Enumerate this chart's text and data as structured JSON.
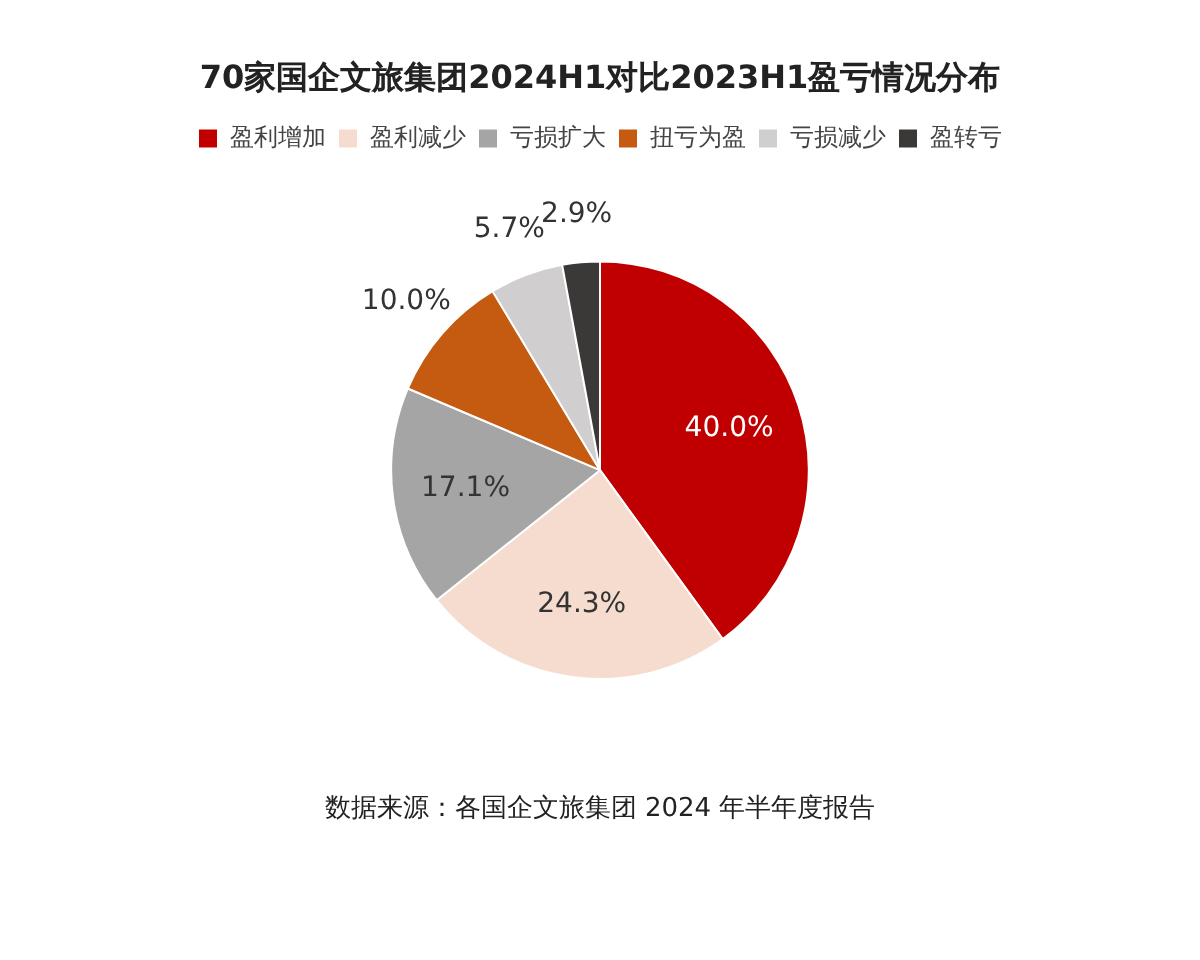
{
  "chart_data": {
    "type": "pie",
    "title": "70家国企文旅集团2024H1对比2023H1盈亏情况分布",
    "categories": [
      "盈利增加",
      "盈利减少",
      "亏损扩大",
      "扭亏为盈",
      "亏损减少",
      "盈转亏"
    ],
    "values": [
      40.0,
      24.3,
      17.1,
      10.0,
      5.7,
      2.9
    ],
    "colors": [
      "#c00000",
      "#f5dccf",
      "#a5a5a5",
      "#c55a11",
      "#d0cece",
      "#3b3838"
    ],
    "value_labels": [
      "40.0%",
      "24.3%",
      "17.1%",
      "10.0%",
      "5.7%",
      "2.9%"
    ],
    "legend": "top",
    "annotations": [
      "数据来源：各国企文旅集团 2024 年半年度报告"
    ]
  }
}
